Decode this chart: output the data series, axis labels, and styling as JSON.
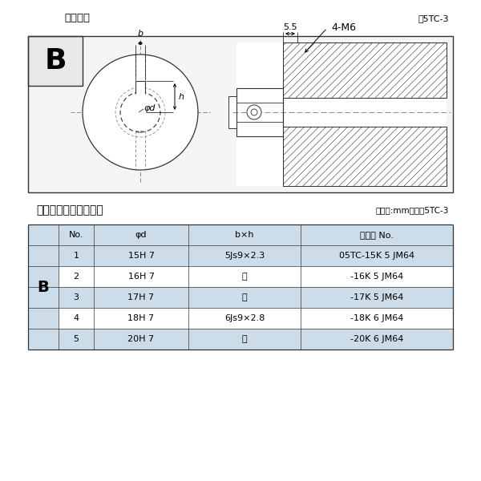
{
  "bg_color": "#ffffff",
  "title_diagram": "軸穴形状",
  "fig_label": "図5TC-3",
  "table_title": "軸穴形状コード一覧表",
  "table_unit": "（単位:mm）　表5TC-3",
  "dim_55": "5.5",
  "dim_4m6": "4-M6",
  "label_b_small": "b",
  "label_h_small": "h",
  "label_phid": "φd",
  "col_headers": [
    "No.",
    "φd",
    "b×h",
    "コード No."
  ],
  "rows": [
    [
      "1",
      "15H 7",
      "5Js9×2.3",
      "05TC-15K 5 JM64"
    ],
    [
      "2",
      "16H 7",
      "〃",
      "-16K 5 JM64"
    ],
    [
      "3",
      "17H 7",
      "〃",
      "-17K 5 JM64"
    ],
    [
      "4",
      "18H 7",
      "6Js9×2.8",
      "-18K 6 JM64"
    ],
    [
      "5",
      "20H 7",
      "〃",
      "-20K 6 JM64"
    ]
  ],
  "row_colors": [
    "#ccdce8",
    "#ffffff",
    "#ccdce8",
    "#ffffff",
    "#ccdce8"
  ],
  "header_color": "#ccdce8",
  "B_col_color": "#ccdce8",
  "hatch_color": "#666666",
  "line_color": "#333333"
}
